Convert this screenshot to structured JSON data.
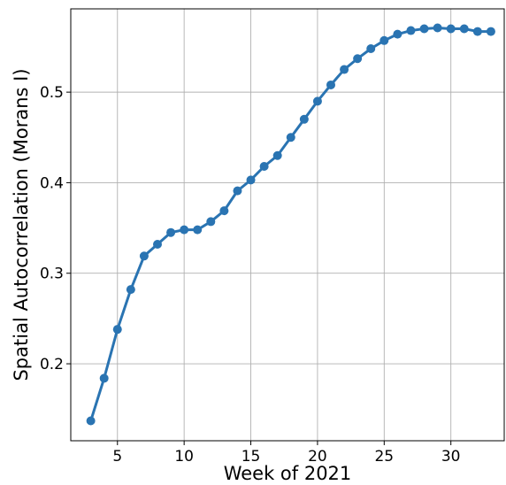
{
  "chart_data": {
    "type": "line",
    "title": "",
    "xlabel": "Week of 2021",
    "ylabel": "Spatial Autocorrelation (Morans I)",
    "xlim": [
      1.5,
      34.0
    ],
    "ylim": [
      0.115,
      0.592
    ],
    "xticks": [
      5,
      10,
      15,
      20,
      25,
      30
    ],
    "yticks": [
      0.2,
      0.3,
      0.4,
      0.5
    ],
    "grid": true,
    "legend": "none",
    "colors": {
      "series": "#2a74b2",
      "grid": "#b0b0b0",
      "axes": "#000000"
    },
    "series": [
      {
        "x": [
          3,
          4,
          5,
          6,
          7,
          8,
          9,
          10,
          11,
          12,
          13,
          14,
          15,
          16,
          17,
          18,
          19,
          20,
          21,
          22,
          23,
          24,
          25,
          26,
          27,
          28,
          29,
          30,
          31,
          32,
          33
        ],
        "values": [
          0.137,
          0.184,
          0.238,
          0.282,
          0.319,
          0.332,
          0.345,
          0.348,
          0.348,
          0.357,
          0.369,
          0.391,
          0.403,
          0.418,
          0.43,
          0.45,
          0.47,
          0.49,
          0.508,
          0.525,
          0.537,
          0.548,
          0.557,
          0.564,
          0.568,
          0.57,
          0.571,
          0.57,
          0.57,
          0.567,
          0.567
        ]
      }
    ]
  }
}
